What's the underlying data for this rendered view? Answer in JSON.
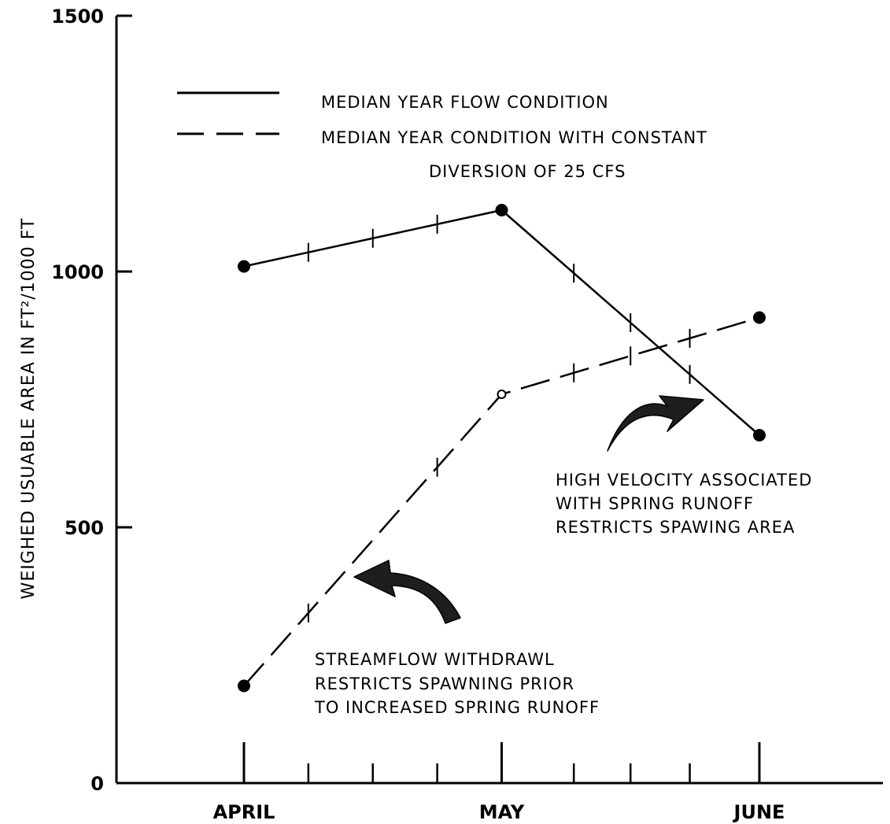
{
  "chart_data": {
    "type": "line",
    "title": "",
    "xlabel": "",
    "ylabel": "WEIGHED  USUABLE  AREA  IN  FT²/1000 FT",
    "ylim": [
      0,
      1500
    ],
    "y_ticks": [
      0,
      500,
      1000,
      1500
    ],
    "y_tick_labels": [
      "0",
      "500",
      "1000",
      "1500"
    ],
    "x_ticks": [
      0,
      1,
      2
    ],
    "x_tick_labels": [
      "APRIL",
      "MAY",
      "JUNE"
    ],
    "grid": false,
    "legend_placement": "top",
    "series": [
      {
        "name": "MEDIAN  YEAR  FLOW  CONDITION",
        "style": "solid",
        "color": "#000000",
        "x": [
          0,
          1,
          2
        ],
        "y": [
          1010,
          1120,
          680
        ],
        "minor_ticks_x": [
          0.25,
          0.5,
          0.75,
          1.28,
          1.5,
          1.73
        ]
      },
      {
        "name": "MEDIAN  YEAR  CONDITION  WITH  CONSTANT  DIVERSION  OF  25 CFS",
        "legend_lines": [
          "MEDIAN  YEAR  CONDITION  WITH  CONSTANT",
          "DIVERSION  OF  25 CFS"
        ],
        "style": "dashed",
        "color": "#000000",
        "x": [
          0,
          1,
          2
        ],
        "y": [
          190,
          760,
          910
        ],
        "minor_ticks_x": [
          0.25,
          0.75,
          1.28,
          1.5,
          1.73
        ]
      }
    ],
    "annotations": [
      {
        "lines": [
          "HIGH  VELOCITY  ASSOCIATED",
          "WITH  SPRING  RUNOFF",
          "RESTRICTS  SPAWING  AREA"
        ]
      },
      {
        "lines": [
          "STREAMFLOW    WITHDRAWL",
          "RESTRICTS  SPAWNING  PRIOR",
          "TO  INCREASED  SPRING  RUNOFF"
        ]
      }
    ]
  }
}
